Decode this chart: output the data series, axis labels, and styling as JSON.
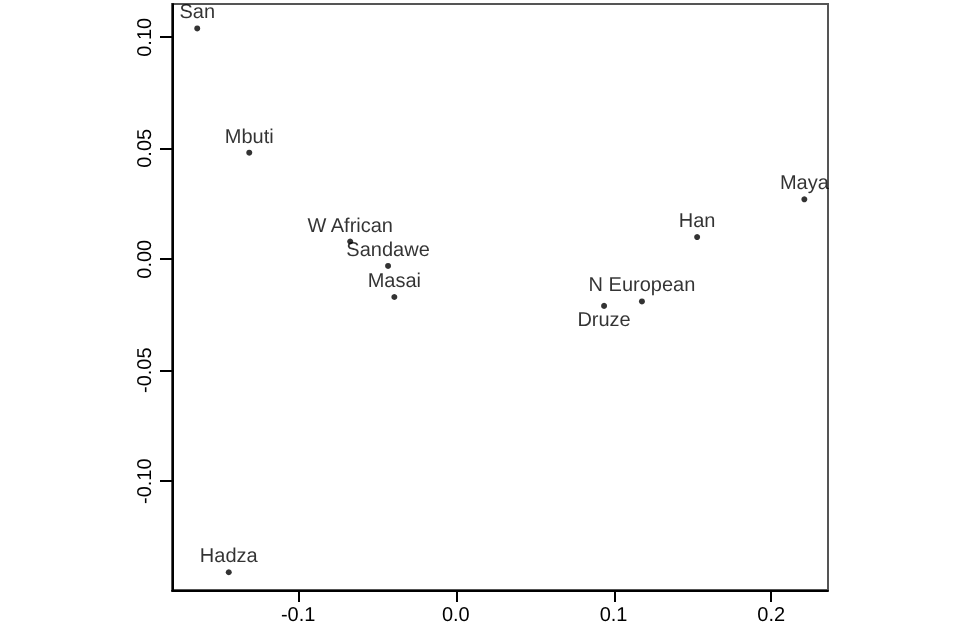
{
  "chart_data": {
    "type": "scatter",
    "x": [
      -0.164,
      -0.131,
      -0.067,
      -0.043,
      -0.039,
      0.153,
      0.221,
      0.118,
      0.094,
      -0.144
    ],
    "values": [
      0.104,
      0.048,
      0.008,
      -0.003,
      -0.017,
      0.01,
      0.027,
      -0.019,
      -0.021,
      -0.141
    ],
    "value_labels": [
      "San",
      "Mbuti",
      "W African",
      "Sandawe",
      "Masai",
      "Han",
      "Maya",
      "N European",
      "Druze",
      "Hadza"
    ],
    "color": "#000000",
    "marker": "circle",
    "xlim": [
      -0.18,
      0.236
    ],
    "ylim": [
      -0.149,
      0.115
    ],
    "xticks": [
      -0.1,
      {
        "value": 0,
        "label": "0.0"
      },
      0.1,
      0.2
    ],
    "yticks": [
      {
        "value": -0.1,
        "label": "-0.10"
      },
      -0.05,
      {
        "value": 0,
        "label": "0.00"
      },
      0.05,
      {
        "value": 0.1,
        "label": "0.10"
      }
    ],
    "grid": false
  }
}
